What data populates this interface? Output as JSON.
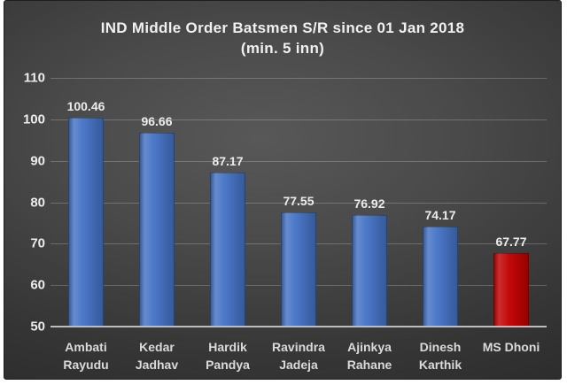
{
  "chart_data": {
    "type": "bar",
    "title_line1": "IND Middle Order Batsmen S/R since 01 Jan 2018",
    "title_line2": "(min. 5 inn)",
    "categories": [
      "Ambati Rayudu",
      "Kedar Jadhav",
      "Hardik Pandya",
      "Ravindra Jadeja",
      "Ajinkya Rahane",
      "Dinesh Karthik",
      "MS Dhoni"
    ],
    "category_lines": [
      [
        "Ambati",
        "Rayudu"
      ],
      [
        "Kedar",
        "Jadhav"
      ],
      [
        "Hardik",
        "Pandya"
      ],
      [
        "Ravindra",
        "Jadeja"
      ],
      [
        "Ajinkya",
        "Rahane"
      ],
      [
        "Dinesh",
        "Karthik"
      ],
      [
        "MS Dhoni"
      ]
    ],
    "values": [
      100.46,
      96.66,
      87.17,
      77.55,
      76.92,
      74.17,
      67.77
    ],
    "value_labels": [
      "100.46",
      "96.66",
      "87.17",
      "77.55",
      "76.92",
      "74.17",
      "67.77"
    ],
    "bar_colors": [
      "#4472C4",
      "#4472C4",
      "#4472C4",
      "#4472C4",
      "#4472C4",
      "#4472C4",
      "#C00000"
    ],
    "y_ticks": [
      110,
      100,
      90,
      80,
      70,
      60,
      50
    ],
    "ylim": [
      50,
      110
    ],
    "xlabel": "",
    "ylabel": "",
    "grid": true,
    "legend": "none",
    "colors": {
      "bar_blue": "#4472C4",
      "bar_highlight_red": "#C00000",
      "background_dark": "#3A3A3A",
      "axis_line": "#BDBDBD",
      "label_text": "#ECECEC"
    }
  }
}
